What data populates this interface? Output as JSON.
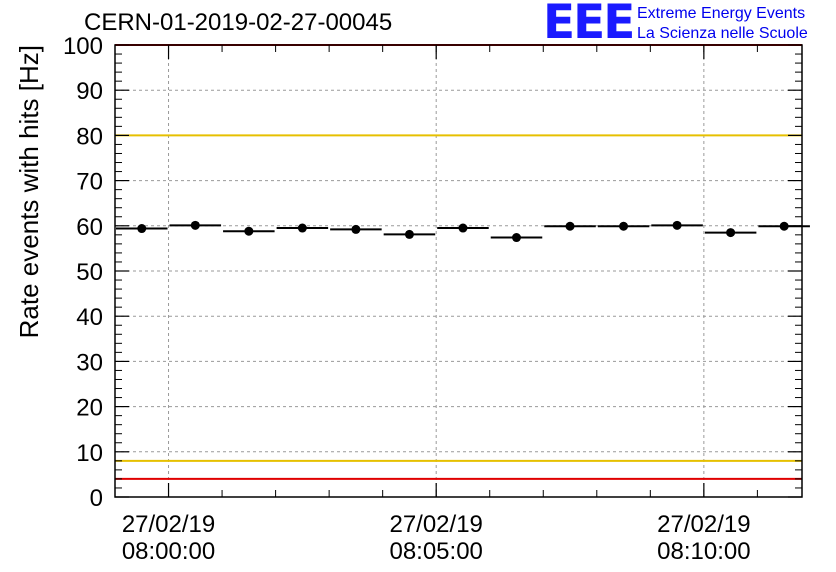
{
  "header": {
    "run_title": "CERN-01-2019-02-27-00045",
    "logo_mark": "EEE",
    "logo_line1": "Extreme Energy Events",
    "logo_line2": "La Scienza nelle Scuole",
    "logo_color": "#1a1aff"
  },
  "chart_data": {
    "type": "scatter",
    "title": "",
    "ylabel": "Rate events with hits [Hz]",
    "xlabel": "",
    "ylim": [
      0,
      100
    ],
    "y_ticks": [
      "0",
      "10",
      "20",
      "30",
      "40",
      "50",
      "60",
      "70",
      "80",
      "90",
      "100"
    ],
    "x_ticks": [
      {
        "date": "27/02/19",
        "time": "08:00:00"
      },
      {
        "date": "27/02/19",
        "time": "08:05:00"
      },
      {
        "date": "27/02/19",
        "time": "08:10:00"
      }
    ],
    "xlim": [
      "07:59:00",
      "08:11:50"
    ],
    "grid": true,
    "bin_width_minutes": 1,
    "series": [
      {
        "x": [
          "07:59:00",
          "08:00:00",
          "08:01:00",
          "08:02:00",
          "08:03:00",
          "08:04:00",
          "08:05:00",
          "08:06:00",
          "08:07:00",
          "08:08:00",
          "08:09:00",
          "08:10:00",
          "08:11:00"
        ],
        "values": [
          59.4,
          60.1,
          58.8,
          59.5,
          59.2,
          58.1,
          59.5,
          57.4,
          59.9,
          59.9,
          60.1,
          58.5,
          59.9
        ],
        "color": "#000000"
      }
    ],
    "reference_lines": [
      {
        "y": 100,
        "color": "#e00000"
      },
      {
        "y": 80,
        "color": "#e6c000"
      },
      {
        "y": 8,
        "color": "#e6c000"
      },
      {
        "y": 4,
        "color": "#e00000"
      }
    ]
  }
}
